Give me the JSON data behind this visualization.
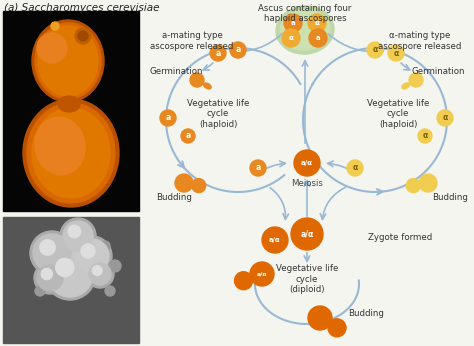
{
  "title": "(a) Saccharomyces cerevisiae",
  "title_fontsize": 7.5,
  "background_color": "#f5f5f0",
  "labels": {
    "ascus_top": "Ascus containing four\nhaploid ascospores",
    "a_mating_left": "a-mating type\nascospore released",
    "a_mating_right": "α-mating type\nascospore released",
    "germination_left": "Germination",
    "germination_right": "Germination",
    "veg_left": "Vegetative life\ncycle\n(haploid)",
    "veg_right": "Vegetative life\ncycle\n(haploid)",
    "budding_left": "Budding",
    "budding_right": "Budding",
    "meiosis": "Meiosis",
    "zygote": "Zygote formed",
    "veg_diploid": "Vegetative life\ncycle\n(diploid)",
    "budding_diploid": "Budding"
  },
  "arrow_color": "#99b8d4",
  "orange_dark": "#e06800",
  "orange_medium": "#e88820",
  "orange_light": "#f0aa30",
  "yellow_light": "#f0cc50",
  "green_ascus": "#b8d8a8",
  "label_fontsize": 6.2,
  "small_fontsize": 5.5
}
